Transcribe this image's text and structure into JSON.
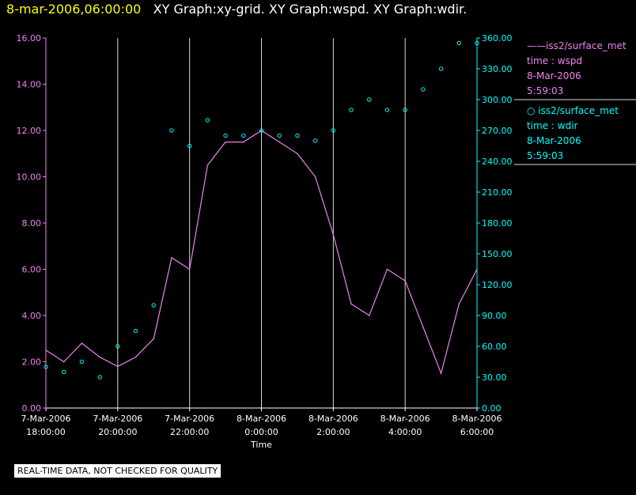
{
  "header": {
    "timestamp": "8-mar-2006,06:00:00",
    "graph_titles": "XY Graph:xy-grid.  XY Graph:wspd.  XY Graph:wdir."
  },
  "colors": {
    "background": "#000000",
    "timestamp": "#ffff00",
    "title": "#ffffff",
    "wspd": "#ee82ee",
    "wdir": "#00ffff",
    "grid": "#d8d8d8",
    "notice_bg": "#ffffff"
  },
  "notice": "REAL-TIME DATA, NOT CHECKED FOR QUALITY",
  "legend": [
    {
      "marker": "line",
      "lines": [
        "——iss2/surface_met",
        "time : wspd",
        "8-Mar-2006",
        "5:59:03"
      ]
    },
    {
      "marker": "circle",
      "lines": [
        "○ iss2/surface_met",
        "time : wdir",
        "8-Mar-2006",
        "5:59:03"
      ]
    }
  ],
  "chart_data": {
    "type": "line",
    "xlabel": "Time",
    "x_ticks": [
      {
        "date": "7-Mar-2006",
        "time": "18:00:00"
      },
      {
        "date": "7-Mar-2006",
        "time": "20:00:00"
      },
      {
        "date": "7-Mar-2006",
        "time": "22:00:00"
      },
      {
        "date": "8-Mar-2006",
        "time": "0:00:00"
      },
      {
        "date": "8-Mar-2006",
        "time": "2:00:00"
      },
      {
        "date": "8-Mar-2006",
        "time": "4:00:00"
      },
      {
        "date": "8-Mar-2006",
        "time": "6:00:00"
      }
    ],
    "xlim": [
      "2006-03-07T18:00:00",
      "2006-03-08T06:00:00"
    ],
    "y_left": {
      "lim": [
        0,
        16
      ],
      "ticks": [
        "0.00",
        "2.00",
        "4.00",
        "6.00",
        "8.00",
        "10.00",
        "12.00",
        "14.00",
        "16.00"
      ]
    },
    "y_right": {
      "lim": [
        0,
        360
      ],
      "ticks": [
        "0.00",
        "30.00",
        "60.00",
        "90.00",
        "120.00",
        "150.00",
        "180.00",
        "210.00",
        "240.00",
        "270.00",
        "300.00",
        "330.00",
        "360.00"
      ]
    },
    "grid": true,
    "series": [
      {
        "axis": "left",
        "style": "line",
        "x": [
          "2006-03-07T18:00",
          "2006-03-07T18:30",
          "2006-03-07T19:00",
          "2006-03-07T19:30",
          "2006-03-07T20:00",
          "2006-03-07T20:30",
          "2006-03-07T21:00",
          "2006-03-07T21:30",
          "2006-03-07T22:00",
          "2006-03-07T22:30",
          "2006-03-07T23:00",
          "2006-03-07T23:30",
          "2006-03-08T00:00",
          "2006-03-08T00:30",
          "2006-03-08T01:00",
          "2006-03-08T01:30",
          "2006-03-08T02:00",
          "2006-03-08T02:30",
          "2006-03-08T03:00",
          "2006-03-08T03:30",
          "2006-03-08T04:00",
          "2006-03-08T04:30",
          "2006-03-08T05:00",
          "2006-03-08T05:30",
          "2006-03-08T06:00"
        ],
        "values": [
          2.5,
          2.0,
          2.8,
          2.2,
          1.8,
          2.2,
          3.0,
          6.5,
          6.0,
          10.5,
          11.5,
          11.5,
          12.0,
          11.5,
          11.0,
          10.0,
          7.5,
          4.5,
          4.0,
          6.0,
          5.5,
          3.5,
          1.5,
          4.5,
          6.0
        ]
      },
      {
        "axis": "right",
        "style": "scatter",
        "x": [
          "2006-03-07T18:00",
          "2006-03-07T18:30",
          "2006-03-07T19:00",
          "2006-03-07T19:30",
          "2006-03-07T20:00",
          "2006-03-07T20:30",
          "2006-03-07T21:00",
          "2006-03-07T21:30",
          "2006-03-07T22:00",
          "2006-03-07T22:30",
          "2006-03-07T23:00",
          "2006-03-07T23:30",
          "2006-03-08T00:00",
          "2006-03-08T00:30",
          "2006-03-08T01:00",
          "2006-03-08T01:30",
          "2006-03-08T02:00",
          "2006-03-08T02:30",
          "2006-03-08T03:00",
          "2006-03-08T03:30",
          "2006-03-08T04:00",
          "2006-03-08T04:30",
          "2006-03-08T05:00",
          "2006-03-08T05:30",
          "2006-03-08T06:00"
        ],
        "values": [
          40,
          35,
          45,
          30,
          60,
          75,
          100,
          270,
          255,
          280,
          265,
          265,
          270,
          265,
          265,
          260,
          270,
          290,
          300,
          290,
          290,
          310,
          330,
          355,
          355
        ]
      }
    ]
  }
}
